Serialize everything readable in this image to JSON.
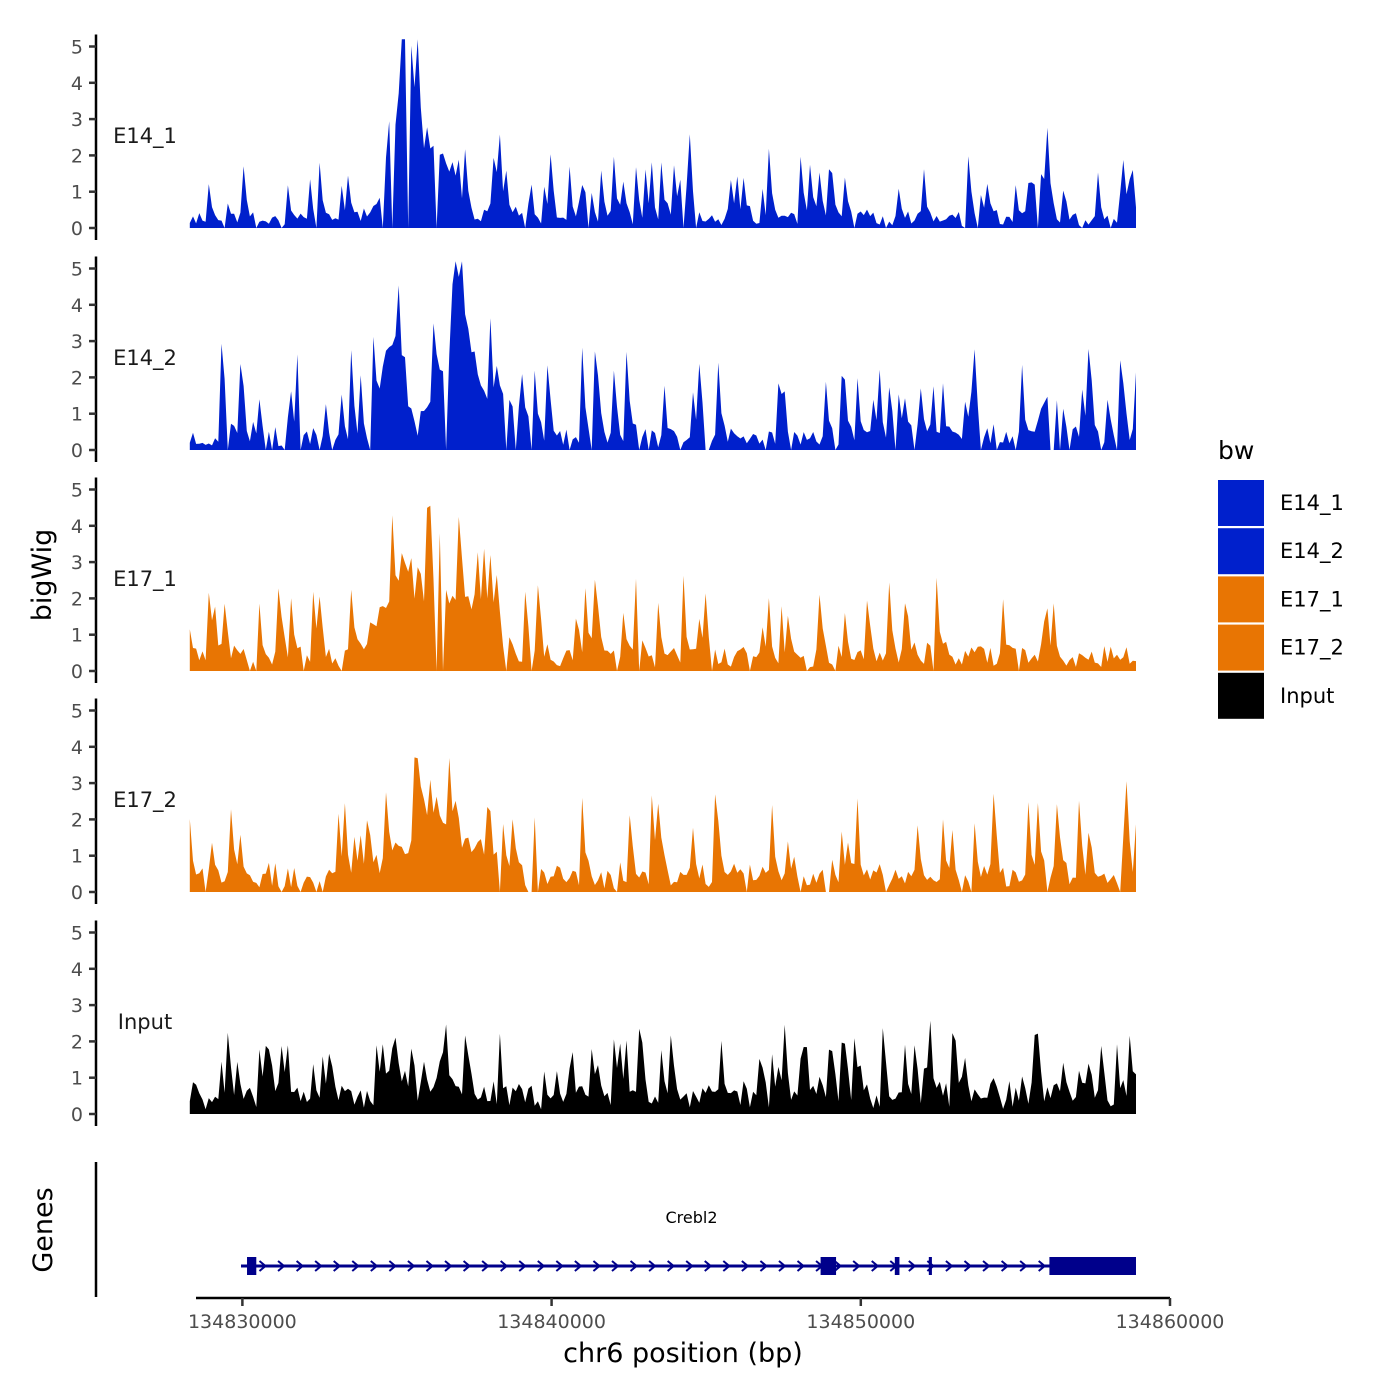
{
  "chart_data": {
    "type": "area",
    "y_axis_title": "bigWig",
    "x_axis_title": "chr6 position (bp)",
    "genes_axis_title": "Genes",
    "legend_title": "bw",
    "ylim": [
      0,
      5
    ],
    "yticks": [
      "0",
      "1",
      "2",
      "3",
      "4",
      "5"
    ],
    "xlim": [
      134828500,
      134860000
    ],
    "xticks": [
      134830000,
      134840000,
      134850000,
      134860000
    ],
    "xtick_labels": [
      "134830000",
      "134840000",
      "134850000",
      "134860000"
    ],
    "data_range": [
      134828300,
      134858900
    ],
    "colors": {
      "E14": "#0020CC",
      "E17": "#E87503",
      "Input": "#000000",
      "gene": "#00008B"
    },
    "legend": [
      {
        "label": "E14_1",
        "color": "#0020CC"
      },
      {
        "label": "E14_2",
        "color": "#0020CC"
      },
      {
        "label": "E17_1",
        "color": "#E87503"
      },
      {
        "label": "E17_2",
        "color": "#E87503"
      },
      {
        "label": "Input",
        "color": "#000000"
      }
    ],
    "tracks": [
      {
        "name": "E14_1",
        "color": "#0020CC",
        "seed": 11,
        "base": 0.55,
        "noise": 1.0,
        "gapProb": 0.07,
        "peaks": [
          [
            134835300,
            4.6,
            450
          ],
          [
            134836700,
            1.5,
            250
          ],
          [
            134838200,
            1.7,
            120
          ],
          [
            134841100,
            1.2,
            150
          ],
          [
            134844300,
            1.6,
            120
          ],
          [
            134855900,
            1.1,
            200
          ]
        ]
      },
      {
        "name": "E14_2",
        "color": "#0020CC",
        "seed": 23,
        "base": 0.75,
        "noise": 1.3,
        "gapProb": 0.12,
        "peaks": [
          [
            134834900,
            3.2,
            300
          ],
          [
            134836500,
            2.2,
            400
          ],
          [
            134837200,
            2.0,
            300
          ],
          [
            134838200,
            1.4,
            600
          ],
          [
            134856200,
            1.5,
            300
          ]
        ]
      },
      {
        "name": "E17_1",
        "color": "#E87503",
        "seed": 37,
        "base": 0.85,
        "noise": 1.05,
        "gapProb": 0.05,
        "peaks": [
          [
            134835100,
            2.1,
            600
          ],
          [
            134836300,
            1.6,
            700
          ],
          [
            134837500,
            0.9,
            600
          ]
        ]
      },
      {
        "name": "E17_2",
        "color": "#E87503",
        "seed": 53,
        "base": 0.95,
        "noise": 1.15,
        "gapProb": 0.05,
        "peaks": [
          [
            134835800,
            1.0,
            900
          ],
          [
            134837200,
            1.0,
            700
          ]
        ]
      },
      {
        "name": "Input",
        "color": "#000000",
        "seed": 71,
        "base": 1.05,
        "noise": 0.9,
        "gapProb": 0.0,
        "peaks": [
          [
            134836500,
            1.4,
            120
          ],
          [
            134835000,
            0.9,
            250
          ]
        ]
      }
    ],
    "gene": {
      "name": "Crebl2",
      "start": 134830150,
      "end": 134858900,
      "strand": "+",
      "exons": [
        [
          134830150,
          134830450
        ],
        [
          134848700,
          134849200
        ],
        [
          134851100,
          134851250
        ],
        [
          134852200,
          134852300
        ],
        [
          134856100,
          134858900
        ]
      ]
    }
  }
}
